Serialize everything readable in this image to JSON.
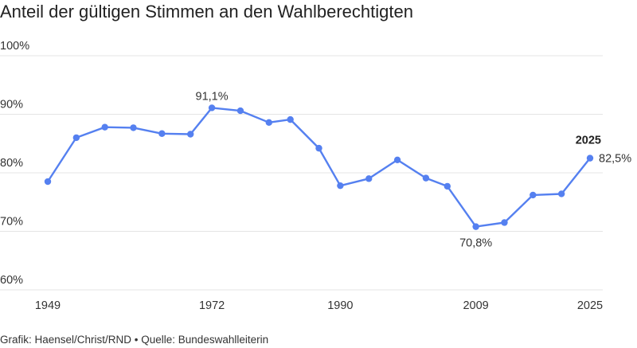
{
  "title": "Anteil der gültigen Stimmen an den Wahlberechtigten",
  "source": "Grafik: Haensel/Christ/RND • Quelle: Bundeswahlleiterin",
  "chart_data": {
    "type": "line",
    "title": "Anteil der gültigen Stimmen an den Wahlberechtigten",
    "xlabel": "",
    "ylabel": "",
    "ylim": [
      60,
      100
    ],
    "yticks": [
      "60%",
      "70%",
      "80%",
      "90%",
      "100%"
    ],
    "yticks_values": [
      60,
      70,
      80,
      90,
      100
    ],
    "xticks": [
      "1949",
      "1972",
      "1990",
      "2009",
      "2025"
    ],
    "grid": true,
    "color": "#5580f0",
    "series": [
      {
        "x": [
          1949,
          1953,
          1957,
          1961,
          1965,
          1969,
          1972,
          1976,
          1980,
          1983,
          1987,
          1990,
          1994,
          1998,
          2002,
          2005,
          2009,
          2013,
          2017,
          2021,
          2025
        ],
        "values": [
          78.5,
          86.0,
          87.8,
          87.7,
          86.7,
          86.6,
          91.1,
          90.6,
          88.6,
          89.1,
          84.2,
          77.8,
          79.0,
          82.2,
          79.1,
          77.7,
          70.8,
          71.5,
          76.2,
          76.4,
          82.5
        ]
      }
    ],
    "annotations": [
      {
        "x": 1972,
        "text": "91,1%"
      },
      {
        "x": 2009,
        "text": "70,8%"
      },
      {
        "x": 2025,
        "text": "82,5%",
        "year_label": "2025"
      }
    ]
  }
}
